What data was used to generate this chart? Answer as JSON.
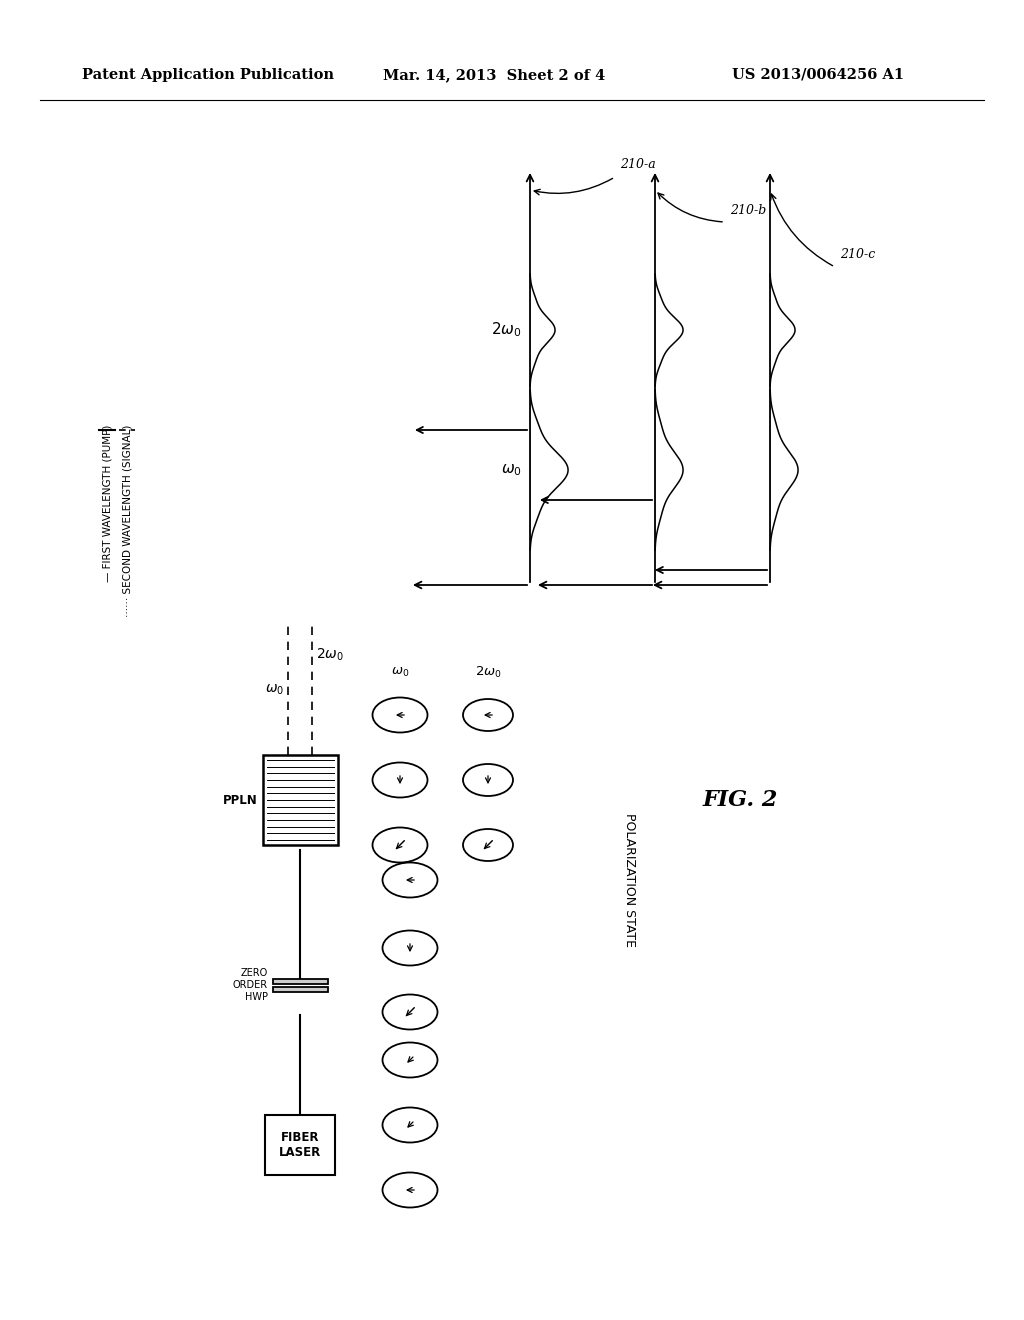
{
  "header_left": "Patent Application Publication",
  "header_mid": "Mar. 14, 2013  Sheet 2 of 4",
  "header_right": "US 2013/0064256 A1",
  "fig_label": "FIG. 2",
  "legend_solid": "FIRST WAVELENGTH (PUMP)",
  "legend_dash": "SECOND WAVELENGTH (SIGNAL)",
  "labels_210": [
    "210-a",
    "210-b",
    "210-c"
  ],
  "omega_label": "ω₀",
  "omega2_label": "2ω₀",
  "ppln_label": "PPLN",
  "hwp_label": "ZERO\nORDER\nHWP",
  "fl_label": "FIBER\nLASER",
  "pol_state_label": "POLARIZATION STATE",
  "bg": "#ffffff"
}
